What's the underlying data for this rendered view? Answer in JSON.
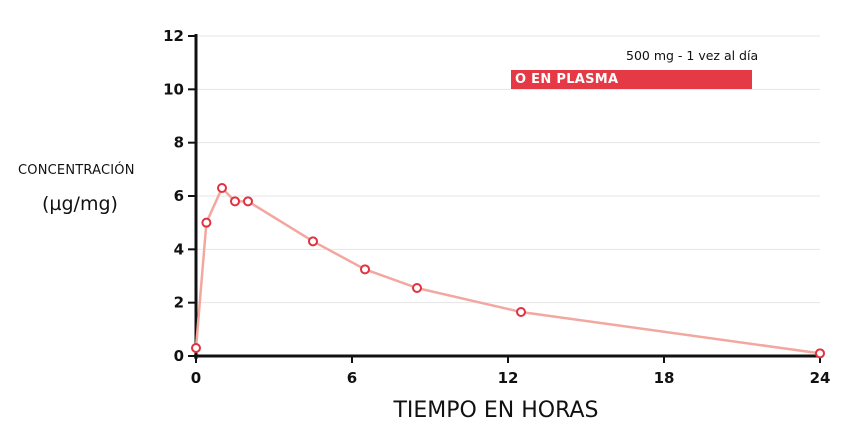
{
  "chart_data": {
    "type": "line",
    "x_unit_label": "TIEMPO EN HORAS",
    "y_label_line1": "CONCENTRACIÓN",
    "y_label_line2": "(µg/mg)",
    "legend": {
      "note": "500 mg - 1 vez al día",
      "series_label": "O EN PLASMA",
      "color": "#e63946"
    },
    "xlim": [
      0,
      24
    ],
    "ylim": [
      0,
      12
    ],
    "x_ticks": [
      0,
      6,
      12,
      18,
      24
    ],
    "y_ticks": [
      0,
      2,
      4,
      6,
      8,
      10,
      12
    ],
    "grid": true,
    "line_color": "#f2a79f",
    "marker_color": "#e0323f",
    "series": [
      {
        "name": "O EN PLASMA",
        "x": [
          0,
          0.4,
          1.0,
          1.5,
          2.0,
          4.5,
          6.5,
          8.5,
          12.5,
          24.0
        ],
        "y": [
          0.3,
          5.0,
          6.3,
          5.8,
          5.8,
          4.3,
          3.25,
          2.55,
          1.65,
          0.1
        ]
      }
    ]
  }
}
